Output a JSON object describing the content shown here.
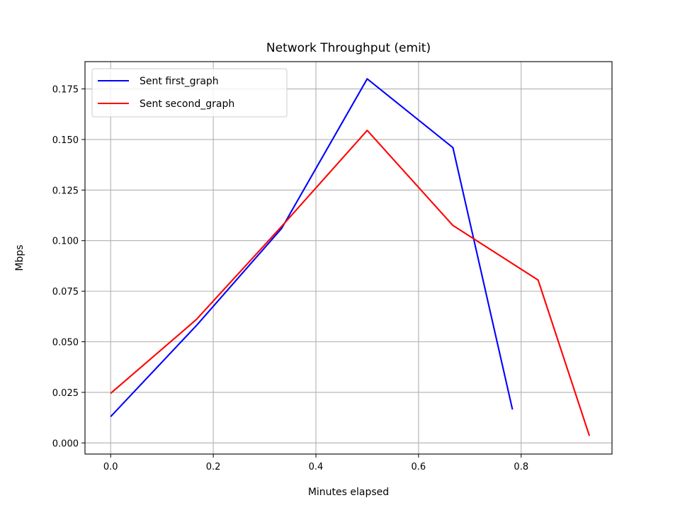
{
  "chart_data": {
    "type": "line",
    "title": "Network Throughput (emit)",
    "xlabel": "Minutes elapsed",
    "ylabel": "Mbps",
    "xlim": [
      -0.05,
      0.977
    ],
    "ylim": [
      -0.0055,
      0.1885
    ],
    "x_ticks": [
      0.0,
      0.2,
      0.4,
      0.6,
      0.8
    ],
    "x_tick_labels": [
      "0.0",
      "0.2",
      "0.4",
      "0.6",
      "0.8"
    ],
    "y_ticks": [
      0.0,
      0.025,
      0.05,
      0.075,
      0.1,
      0.125,
      0.15,
      0.175
    ],
    "y_tick_labels": [
      "0.000",
      "0.025",
      "0.050",
      "0.075",
      "0.100",
      "0.125",
      "0.150",
      "0.175"
    ],
    "grid": true,
    "legend_position": "top-left",
    "series": [
      {
        "name": "Sent first_graph",
        "color": "#0000ff",
        "x": [
          0.0,
          0.167,
          0.333,
          0.5,
          0.667,
          0.783
        ],
        "y": [
          0.013,
          0.058,
          0.106,
          0.18,
          0.146,
          0.0165
        ]
      },
      {
        "name": "Sent second_graph",
        "color": "#ff0000",
        "x": [
          0.0,
          0.167,
          0.333,
          0.5,
          0.667,
          0.833,
          0.933
        ],
        "y": [
          0.0245,
          0.061,
          0.107,
          0.1545,
          0.1075,
          0.0805,
          0.0035
        ]
      }
    ]
  }
}
